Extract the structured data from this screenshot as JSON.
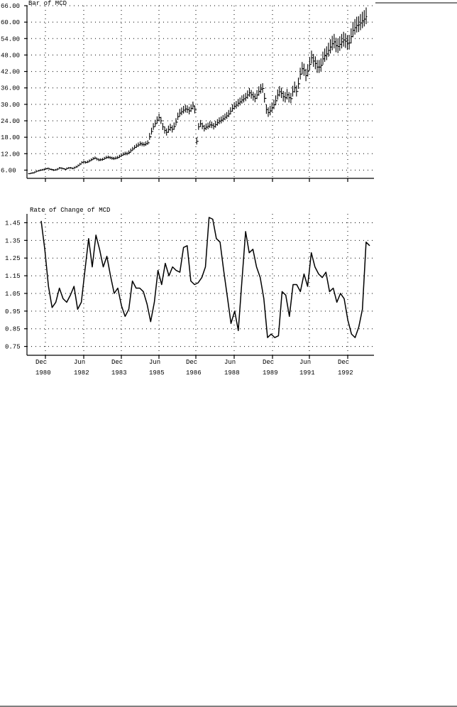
{
  "chart_data": [
    {
      "type": "bar",
      "title": "Bar of MCD",
      "ylim": [
        3,
        66
      ],
      "yticks": [
        "66.00",
        "60.00",
        "54.00",
        "48.00",
        "42.00",
        "36.00",
        "30.00",
        "24.00",
        "18.00",
        "12.00",
        "6.00"
      ],
      "grid": true,
      "x": [
        0,
        1,
        2,
        3,
        4,
        5,
        6,
        7,
        8,
        9,
        10,
        11,
        12,
        13,
        14,
        15,
        16,
        17,
        18,
        19,
        20,
        21,
        22,
        23,
        24,
        25,
        26,
        27,
        28,
        29,
        30,
        31,
        32,
        33,
        34,
        35,
        36,
        37,
        38,
        39,
        40,
        41,
        42,
        43,
        44,
        45,
        46,
        47,
        48,
        49,
        50,
        51,
        52,
        53,
        54,
        55,
        56,
        57,
        58,
        59,
        60,
        61,
        62,
        63,
        64,
        65,
        66,
        67,
        68,
        69,
        70,
        71,
        72,
        73,
        74,
        75,
        76,
        77,
        78,
        79,
        80,
        81,
        82,
        83,
        84,
        85,
        86,
        87,
        88,
        89,
        90,
        91,
        92,
        93,
        94,
        95,
        96,
        97,
        98,
        99,
        100,
        101,
        102,
        103,
        104,
        105,
        106,
        107,
        108,
        109,
        110,
        111,
        112,
        113,
        114,
        115,
        116,
        117,
        118,
        119,
        120,
        121,
        122,
        123,
        124,
        125,
        126,
        127,
        128,
        129,
        130,
        131,
        132,
        133,
        134,
        135,
        136,
        137,
        138,
        139,
        140,
        141,
        142,
        143,
        144,
        145,
        146,
        147,
        148,
        149,
        150,
        151,
        152,
        153,
        154,
        155,
        156,
        157,
        158,
        159,
        160,
        161,
        162,
        163,
        164,
        165,
        166,
        167,
        168,
        169,
        170,
        171,
        172,
        173,
        174,
        175,
        176,
        177,
        178,
        179
      ],
      "close": [
        4.7,
        4.9,
        5.0,
        5.3,
        5.6,
        5.8,
        6.0,
        6.1,
        6.3,
        6.5,
        6.6,
        6.3,
        6.2,
        6.0,
        6.1,
        6.4,
        6.8,
        6.7,
        6.5,
        6.3,
        6.6,
        6.8,
        6.8,
        6.6,
        6.9,
        7.2,
        7.7,
        8.2,
        8.8,
        9.0,
        8.8,
        9.0,
        9.4,
        9.8,
        10.2,
        10.4,
        10.0,
        9.7,
        9.8,
        9.9,
        10.3,
        10.6,
        10.7,
        10.5,
        10.3,
        10.2,
        10.4,
        10.6,
        11.0,
        11.4,
        11.8,
        12.0,
        12.0,
        12.5,
        13.1,
        13.7,
        14.3,
        14.8,
        15.2,
        15.6,
        15.4,
        15.3,
        15.6,
        16.0,
        18.2,
        20.1,
        21.8,
        23.0,
        24.2,
        25.2,
        24.0,
        21.8,
        20.5,
        19.8,
        20.8,
        21.5,
        20.9,
        21.9,
        23.5,
        25.5,
        26.8,
        27.3,
        27.9,
        28.3,
        28.1,
        27.6,
        28.5,
        29.4,
        28.0,
        16.5,
        21.8,
        22.9,
        22.0,
        21.2,
        21.7,
        22.0,
        22.5,
        22.4,
        21.9,
        22.6,
        23.3,
        23.9,
        24.2,
        24.7,
        25.3,
        25.8,
        26.5,
        27.5,
        28.5,
        29.3,
        29.7,
        30.4,
        30.9,
        31.6,
        32.0,
        32.5,
        33.4,
        34.2,
        33.5,
        32.8,
        32.2,
        33.4,
        34.7,
        35.5,
        35.8,
        32.2,
        28.1,
        27.0,
        27.6,
        28.8,
        29.8,
        31.3,
        33.4,
        34.6,
        34.0,
        32.8,
        32.4,
        33.5,
        32.4,
        32.1,
        34.6,
        36.1,
        34.7,
        37.5,
        41.0,
        43.0,
        42.4,
        40.5,
        42.2,
        44.6,
        47.0,
        45.8,
        44.9,
        43.6,
        43.6,
        44.2,
        46.6,
        47.7,
        48.4,
        49.7,
        50.9,
        52.1,
        52.8,
        51.4,
        51.1,
        51.9,
        52.8,
        53.5,
        53.0,
        52.3,
        52.4,
        54.7,
        57.0,
        58.0,
        58.8,
        59.0,
        59.7,
        60.5,
        61.1,
        62.0
      ],
      "range": [
        0.4,
        0.4,
        0.5,
        0.5,
        0.5,
        0.5,
        0.5,
        0.6,
        0.6,
        0.6,
        0.6,
        0.6,
        0.6,
        0.6,
        0.6,
        0.6,
        0.6,
        0.6,
        0.6,
        0.6,
        0.6,
        0.6,
        0.6,
        0.6,
        0.7,
        0.7,
        0.7,
        0.8,
        0.8,
        0.9,
        0.9,
        0.9,
        0.9,
        0.9,
        1.0,
        1.0,
        1.0,
        1.0,
        1.0,
        1.0,
        1.0,
        1.1,
        1.1,
        1.1,
        1.1,
        1.1,
        1.1,
        1.1,
        1.1,
        1.2,
        1.2,
        1.3,
        1.3,
        1.3,
        1.4,
        1.4,
        1.5,
        1.5,
        1.6,
        1.6,
        1.6,
        1.6,
        1.6,
        1.6,
        2.5,
        2.5,
        2.5,
        2.5,
        2.6,
        2.6,
        2.6,
        2.6,
        2.6,
        2.6,
        2.6,
        2.6,
        2.6,
        2.7,
        2.7,
        2.7,
        2.8,
        2.8,
        2.8,
        2.8,
        2.8,
        2.8,
        2.8,
        2.9,
        2.9,
        2.6,
        2.5,
        2.5,
        2.4,
        2.4,
        2.4,
        2.4,
        2.4,
        2.4,
        2.4,
        2.4,
        2.4,
        2.5,
        2.5,
        2.5,
        2.5,
        2.5,
        2.6,
        2.6,
        2.7,
        2.7,
        2.8,
        2.9,
        2.9,
        3.0,
        3.0,
        3.0,
        3.1,
        3.2,
        3.2,
        3.2,
        3.2,
        3.3,
        3.4,
        3.5,
        3.5,
        3.5,
        3.5,
        3.5,
        3.5,
        3.5,
        3.5,
        3.6,
        3.7,
        3.8,
        3.8,
        3.8,
        3.8,
        3.8,
        3.8,
        3.8,
        3.9,
        4.0,
        4.0,
        4.1,
        4.3,
        4.5,
        4.5,
        4.5,
        4.5,
        4.6,
        4.7,
        4.7,
        4.7,
        4.7,
        4.7,
        4.7,
        4.8,
        4.9,
        5.0,
        5.1,
        5.2,
        5.3,
        5.3,
        5.3,
        5.3,
        5.3,
        5.3,
        5.4,
        5.4,
        5.4,
        5.4,
        5.5,
        5.6,
        5.7,
        5.8,
        5.8,
        5.9,
        6.0,
        6.0,
        6.1
      ]
    },
    {
      "type": "line",
      "title": "Rate of Change of MCD",
      "ylim": [
        0.7,
        1.5
      ],
      "yticks": [
        "1.45",
        "1.35",
        "1.25",
        "1.15",
        "1.05",
        "0.95",
        "0.85",
        "0.75"
      ],
      "grid": true,
      "x": [
        0,
        2,
        4,
        6,
        8,
        10,
        12,
        14,
        16,
        18,
        20,
        22,
        24,
        26,
        28,
        30,
        32,
        34,
        36,
        38,
        40,
        42,
        44,
        46,
        48,
        50,
        52,
        54,
        56,
        58,
        60,
        62,
        64,
        66,
        68,
        70,
        72,
        74,
        76,
        78,
        80,
        82,
        84,
        86,
        88,
        90,
        92,
        94,
        96,
        98,
        100,
        102,
        104,
        106,
        108,
        110,
        112,
        114,
        116,
        118,
        120,
        122,
        124,
        126,
        128,
        130,
        132,
        134,
        136,
        138,
        140,
        142,
        144,
        146,
        148,
        150,
        152,
        154,
        156,
        158,
        160,
        162,
        164,
        166,
        168,
        170,
        172,
        174,
        176,
        178,
        180
      ],
      "values": [
        1.46,
        1.3,
        1.09,
        0.97,
        1.0,
        1.08,
        1.02,
        1.0,
        1.04,
        1.09,
        0.96,
        1.0,
        1.18,
        1.36,
        1.2,
        1.38,
        1.3,
        1.2,
        1.26,
        1.15,
        1.05,
        1.08,
        0.98,
        0.92,
        0.96,
        1.12,
        1.08,
        1.08,
        1.06,
        0.99,
        0.89,
        1.0,
        1.18,
        1.1,
        1.22,
        1.15,
        1.2,
        1.18,
        1.17,
        1.31,
        1.32,
        1.12,
        1.1,
        1.11,
        1.14,
        1.2,
        1.48,
        1.47,
        1.36,
        1.34,
        1.18,
        1.03,
        0.88,
        0.95,
        0.84,
        1.12,
        1.4,
        1.28,
        1.3,
        1.2,
        1.14,
        1.02,
        0.8,
        0.82,
        0.8,
        0.81,
        1.06,
        1.04,
        0.92,
        1.1,
        1.1,
        1.06,
        1.16,
        1.09,
        1.28,
        1.2,
        1.16,
        1.14,
        1.17,
        1.06,
        1.08,
        1.0,
        1.05,
        1.02,
        0.9,
        0.82,
        0.8,
        0.86,
        0.96,
        1.34,
        1.32
      ]
    }
  ],
  "x_axis": {
    "labels": [
      {
        "month": "Dec",
        "year": "1980"
      },
      {
        "month": "Jun",
        "year": "1982"
      },
      {
        "month": "Dec",
        "year": "1983"
      },
      {
        "month": "Jun",
        "year": "1985"
      },
      {
        "month": "Dec",
        "year": "1986"
      },
      {
        "month": "Jun",
        "year": "1988"
      },
      {
        "month": "Dec",
        "year": "1989"
      },
      {
        "month": "Jun",
        "year": "1991"
      },
      {
        "month": "Dec",
        "year": "1992"
      }
    ]
  }
}
